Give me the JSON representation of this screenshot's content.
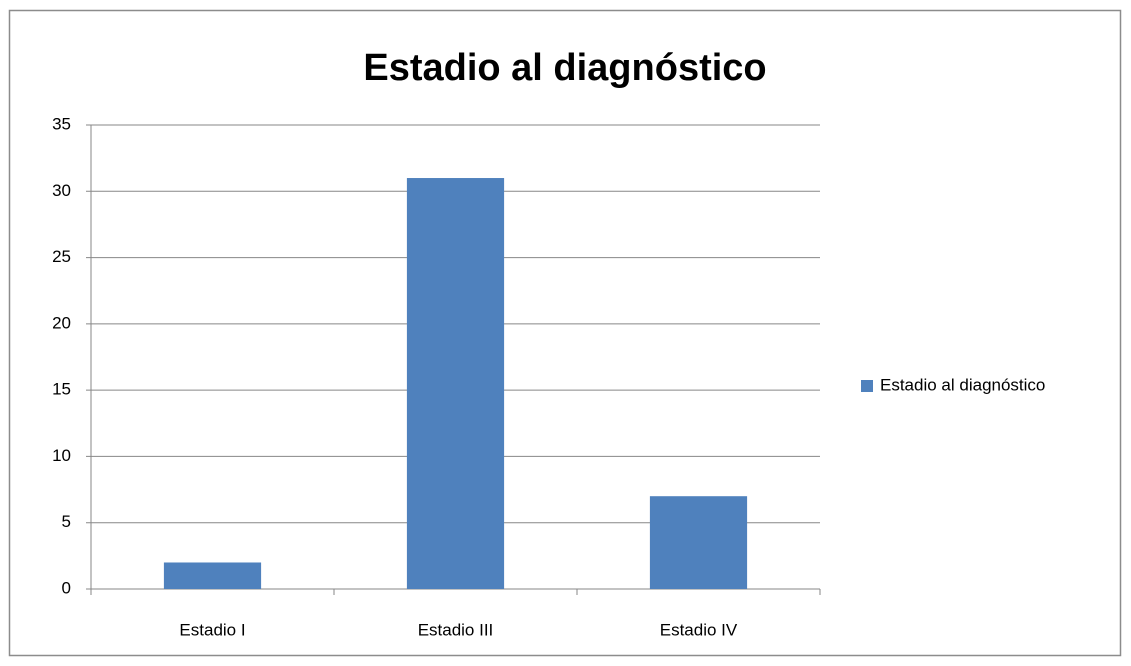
{
  "chart_data": {
    "type": "bar",
    "title": "Estadio al diagnóstico",
    "categories": [
      "Estadio I",
      "Estadio III",
      "Estadio IV"
    ],
    "series": [
      {
        "name": "Estadio al diagnóstico",
        "color": "#4f81bd",
        "values": [
          2,
          31,
          7
        ]
      }
    ],
    "ylim": [
      0,
      35
    ],
    "yticks": [
      0,
      5,
      10,
      15,
      20,
      25,
      30,
      35
    ],
    "grid": true,
    "legend": "right"
  }
}
